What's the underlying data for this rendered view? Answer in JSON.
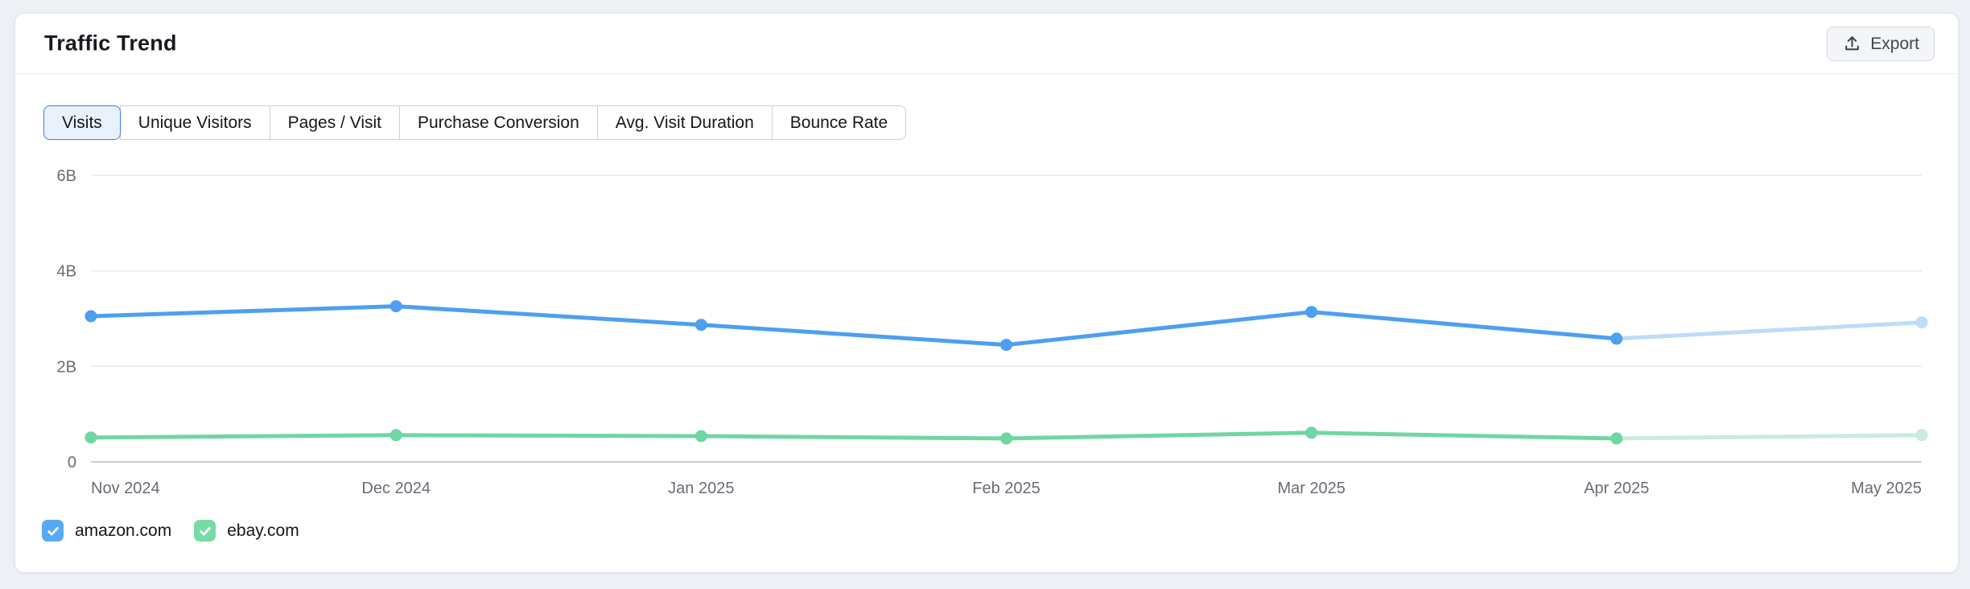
{
  "page": {
    "background": "#edf0f5"
  },
  "card": {
    "title": "Traffic Trend",
    "export_label": "Export"
  },
  "icons": {
    "export": "upload-icon",
    "legend_check": "checkmark"
  },
  "tabs": [
    {
      "label": "Visits",
      "slug": "visits",
      "active": true
    },
    {
      "label": "Unique Visitors",
      "slug": "unique-visitors",
      "active": false
    },
    {
      "label": "Pages / Visit",
      "slug": "pages-visit",
      "active": false
    },
    {
      "label": "Purchase Conversion",
      "slug": "purchase-conversion",
      "active": false
    },
    {
      "label": "Avg. Visit Duration",
      "slug": "avg-visit-duration",
      "active": false
    },
    {
      "label": "Bounce Rate",
      "slug": "bounce-rate",
      "active": false
    }
  ],
  "chart_data": {
    "type": "line",
    "title": "Traffic Trend — Visits",
    "categories": [
      "Nov 2024",
      "Dec 2024",
      "Jan 2025",
      "Feb 2025",
      "Mar 2025",
      "Apr 2025",
      "May 2025"
    ],
    "unit": "billions of visits",
    "ylim": [
      0,
      6
    ],
    "yticks": [
      {
        "value": 0,
        "label": "0"
      },
      {
        "value": 2,
        "label": "2B"
      },
      {
        "value": 4,
        "label": "4B"
      },
      {
        "value": 6,
        "label": "6B"
      }
    ],
    "grid": true,
    "legend_position": "bottom",
    "series": [
      {
        "name": "amazon.com",
        "color": "#4d9ff1",
        "faded_color": "#bcdcf8",
        "last_segment_faded": true,
        "values": [
          3.05,
          3.26,
          2.87,
          2.45,
          3.14,
          2.58,
          2.92
        ]
      },
      {
        "name": "ebay.com",
        "color": "#70d6a2",
        "faded_color": "#c9ecdb",
        "last_segment_faded": true,
        "values": [
          0.51,
          0.56,
          0.54,
          0.49,
          0.61,
          0.49,
          0.56
        ]
      }
    ]
  },
  "legend": [
    {
      "label": "amazon.com",
      "checked": true,
      "color": "#58a9f3"
    },
    {
      "label": "ebay.com",
      "checked": true,
      "color": "#78dba7"
    }
  ]
}
